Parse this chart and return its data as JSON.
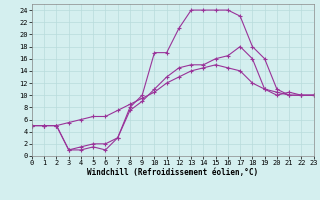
{
  "xlabel": "Windchill (Refroidissement éolien,°C)",
  "xlim": [
    0,
    23
  ],
  "ylim": [
    0,
    25
  ],
  "xticks": [
    0,
    1,
    2,
    3,
    4,
    5,
    6,
    7,
    8,
    9,
    10,
    11,
    12,
    13,
    14,
    15,
    16,
    17,
    18,
    19,
    20,
    21,
    22,
    23
  ],
  "yticks": [
    0,
    2,
    4,
    6,
    8,
    10,
    12,
    14,
    16,
    18,
    20,
    22,
    24
  ],
  "bg_color": "#d4efef",
  "line_color": "#993399",
  "grid_color": "#b8dcdc",
  "line1_x": [
    0,
    1,
    2,
    3,
    4,
    5,
    6,
    7,
    8,
    9,
    10,
    11,
    12,
    13,
    14,
    15,
    16,
    17,
    18,
    19,
    20,
    21,
    22,
    23
  ],
  "line1_y": [
    5,
    5,
    5,
    5.5,
    6,
    6.5,
    6.5,
    7.5,
    8.5,
    9.5,
    10.5,
    12,
    13,
    14,
    14.5,
    15,
    14.5,
    14,
    12,
    11,
    10.5,
    10,
    10,
    10
  ],
  "line2_x": [
    0,
    1,
    2,
    3,
    4,
    5,
    6,
    7,
    8,
    9,
    10,
    11,
    12,
    13,
    14,
    15,
    16,
    17,
    18,
    19,
    20,
    21,
    22,
    23
  ],
  "line2_y": [
    5,
    5,
    5,
    1,
    1.5,
    2,
    2,
    3,
    7.5,
    9,
    11,
    13,
    14.5,
    15,
    15,
    16,
    16.5,
    18,
    16,
    11,
    10,
    10.5,
    10,
    10
  ],
  "line3_x": [
    0,
    1,
    2,
    3,
    4,
    5,
    6,
    7,
    8,
    9,
    10,
    11,
    12,
    13,
    14,
    15,
    16,
    17,
    18,
    19,
    20,
    21,
    22,
    23
  ],
  "line3_y": [
    5,
    5,
    5,
    1,
    1,
    1.5,
    1,
    3,
    8,
    10,
    17,
    17,
    21,
    24,
    24,
    24,
    24,
    23,
    18,
    16,
    11,
    10,
    10,
    10
  ],
  "xlabel_fontsize": 5.5,
  "tick_fontsize": 5,
  "linewidth": 0.8,
  "marker_size": 3
}
